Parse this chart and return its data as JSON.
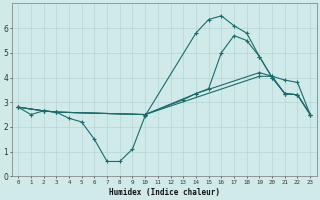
{
  "background_color": "#d0eaea",
  "grid_color": "#b8d4d4",
  "line_color": "#1a6b6b",
  "xlabel": "Humidex (Indice chaleur)",
  "xlim": [
    -0.5,
    23.5
  ],
  "ylim": [
    0,
    7
  ],
  "yticks": [
    0,
    1,
    2,
    3,
    4,
    5,
    6
  ],
  "xticks": [
    0,
    1,
    2,
    3,
    4,
    5,
    6,
    7,
    8,
    9,
    10,
    11,
    12,
    13,
    14,
    15,
    16,
    17,
    18,
    19,
    20,
    21,
    22,
    23
  ],
  "curve1_x": [
    0,
    1,
    2,
    3,
    4,
    5,
    6,
    7,
    8,
    9,
    10,
    14,
    15,
    16,
    17,
    18,
    19,
    20,
    21,
    22,
    23
  ],
  "curve1_y": [
    2.8,
    2.5,
    2.65,
    2.6,
    2.35,
    2.2,
    1.5,
    0.6,
    0.6,
    1.1,
    2.45,
    5.8,
    6.35,
    6.5,
    6.1,
    5.8,
    4.85,
    4.0,
    3.35,
    3.3,
    2.5
  ],
  "curve2_x": [
    0,
    2,
    3,
    10,
    13,
    14,
    15,
    16,
    17,
    18,
    19,
    20,
    21,
    22,
    23
  ],
  "curve2_y": [
    2.8,
    2.65,
    2.6,
    2.5,
    3.1,
    3.35,
    3.55,
    5.0,
    5.7,
    5.5,
    4.85,
    4.0,
    3.35,
    3.3,
    2.5
  ],
  "curve3_x": [
    0,
    2,
    3,
    10,
    14,
    19,
    20,
    21,
    22,
    23
  ],
  "curve3_y": [
    2.8,
    2.65,
    2.6,
    2.5,
    3.35,
    4.2,
    4.05,
    3.35,
    3.3,
    2.5
  ],
  "curve4_x": [
    0,
    2,
    3,
    10,
    19,
    20,
    21,
    22,
    23
  ],
  "curve4_y": [
    2.8,
    2.65,
    2.6,
    2.5,
    4.05,
    4.05,
    3.9,
    3.8,
    2.5
  ]
}
